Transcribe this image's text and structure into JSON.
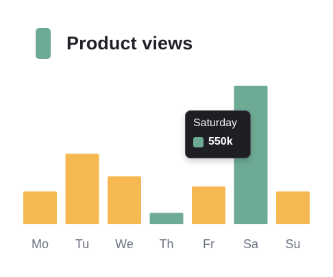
{
  "colors": {
    "highlight": "#6eab95",
    "default": "#f6b952",
    "tick": "#6b7280"
  },
  "chart_data": {
    "type": "bar",
    "categories": [
      "Mo",
      "Tu",
      "We",
      "Th",
      "Fr",
      "Sa",
      "Su"
    ],
    "series": [
      {
        "name": "Product views",
        "values": [
          130,
          280,
          190,
          45,
          150,
          550,
          130
        ]
      }
    ],
    "highlighted": [
      "Th",
      "Sa"
    ],
    "ylim": [
      0,
      550
    ],
    "grid": false,
    "legend": "top-left"
  },
  "tooltip": {
    "title": "Saturday",
    "value": "550k"
  }
}
